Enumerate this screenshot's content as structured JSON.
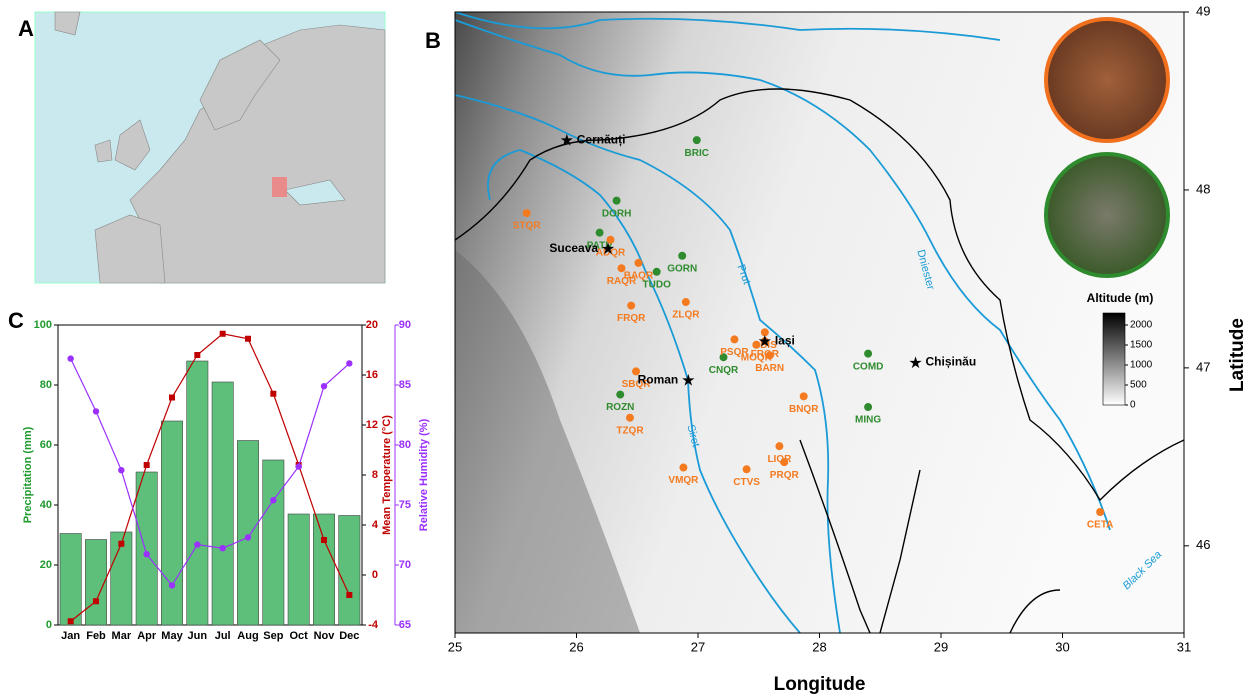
{
  "chart_data": [
    {
      "type": "map",
      "panel": "A"
    },
    {
      "type": "scatter",
      "panel": "B",
      "xlabel": "Longitude",
      "ylabel": "Latitude",
      "xlim": [
        25,
        31
      ],
      "ylim": [
        45.51,
        49
      ],
      "xticks": [
        25,
        26,
        27,
        28,
        29,
        30,
        31
      ],
      "yticks": [
        46,
        47,
        48,
        49
      ],
      "series": [
        {
          "color": "#2e8b2e",
          "labels": [
            "BRIC",
            "DORH",
            "PATR",
            "GORN",
            "TUDO",
            "CNQR",
            "ROZN",
            "COMD",
            "MING"
          ],
          "x": [
            26.99,
            26.33,
            26.19,
            26.87,
            26.66,
            27.21,
            26.36,
            28.4,
            28.4
          ],
          "y": [
            48.28,
            47.94,
            47.76,
            47.63,
            47.54,
            47.06,
            46.85,
            47.08,
            46.78
          ]
        },
        {
          "color": "#f47a20",
          "labels": [
            "STQR",
            "ADQR",
            "BAQR",
            "RAQR",
            "FRQR",
            "ZLQR",
            "PSQR",
            "MOQR",
            "CDIS",
            "FRQR",
            "BARN",
            "SBQR",
            "BNQR",
            "TZQR",
            "LIQR",
            "PRQR",
            "VMQR",
            "CTVS",
            "CETA"
          ],
          "x": [
            25.59,
            26.28,
            26.51,
            26.37,
            26.45,
            26.9,
            27.3,
            27.48,
            27.55,
            27.55,
            27.59,
            26.49,
            27.87,
            26.44,
            27.67,
            27.71,
            26.88,
            27.4,
            30.31
          ],
          "y": [
            47.87,
            47.72,
            47.59,
            47.56,
            47.35,
            47.37,
            47.16,
            47.13,
            47.2,
            47.15,
            47.07,
            46.98,
            46.84,
            46.72,
            46.56,
            46.47,
            46.44,
            46.43,
            46.19
          ]
        }
      ],
      "cities": {
        "labels": [
          "Cernăuți",
          "Suceava",
          "Iași",
          "Roman",
          "Chișinău"
        ],
        "x": [
          25.92,
          26.26,
          27.55,
          26.92,
          28.79
        ],
        "y": [
          48.28,
          47.67,
          47.15,
          46.93,
          47.03
        ]
      },
      "annotations": [
        "Prut",
        "Siret",
        "Dniester",
        "Black Sea"
      ],
      "colorbar": {
        "title": "Altitude (m)",
        "lim": [
          0,
          2300
        ],
        "ticks": [
          0,
          500,
          1000,
          1500,
          2000
        ]
      }
    },
    {
      "type": "bar",
      "panel": "C",
      "categories": [
        "Jan",
        "Feb",
        "Mar",
        "Apr",
        "May",
        "Jun",
        "Jul",
        "Aug",
        "Sep",
        "Oct",
        "Nov",
        "Dec"
      ],
      "ylim": [
        0,
        100
      ],
      "yticks": [
        0,
        20,
        40,
        60,
        80,
        100
      ],
      "y2lim": [
        -4,
        20
      ],
      "y2ticks": [
        -4,
        0,
        4,
        8,
        12,
        16,
        20
      ],
      "y3lim": [
        65,
        90
      ],
      "y3ticks": [
        65,
        70,
        75,
        80,
        85,
        90
      ],
      "series": [
        {
          "name": "Precipitation (mm)",
          "color": "#5dbf7a",
          "label_color": "#1f9a2e",
          "values": [
            30.5,
            28.5,
            31,
            51,
            68,
            88,
            81,
            61.5,
            55,
            37,
            37,
            36.5
          ]
        },
        {
          "name": "Mean Temperature (°C)",
          "axis": "y2",
          "color": "#c00000",
          "values": [
            -3.7,
            -2.1,
            2.5,
            8.8,
            14.2,
            17.6,
            19.3,
            18.9,
            14.5,
            8.8,
            2.8,
            -1.6
          ]
        },
        {
          "name": "Relative Humidity (%)",
          "axis": "y3",
          "color": "#9b30ff",
          "values": [
            87.2,
            82.8,
            77.9,
            70.9,
            68.3,
            71.7,
            71.4,
            72.3,
            75.4,
            78.2,
            84.9,
            86.8
          ]
        }
      ]
    }
  ]
}
